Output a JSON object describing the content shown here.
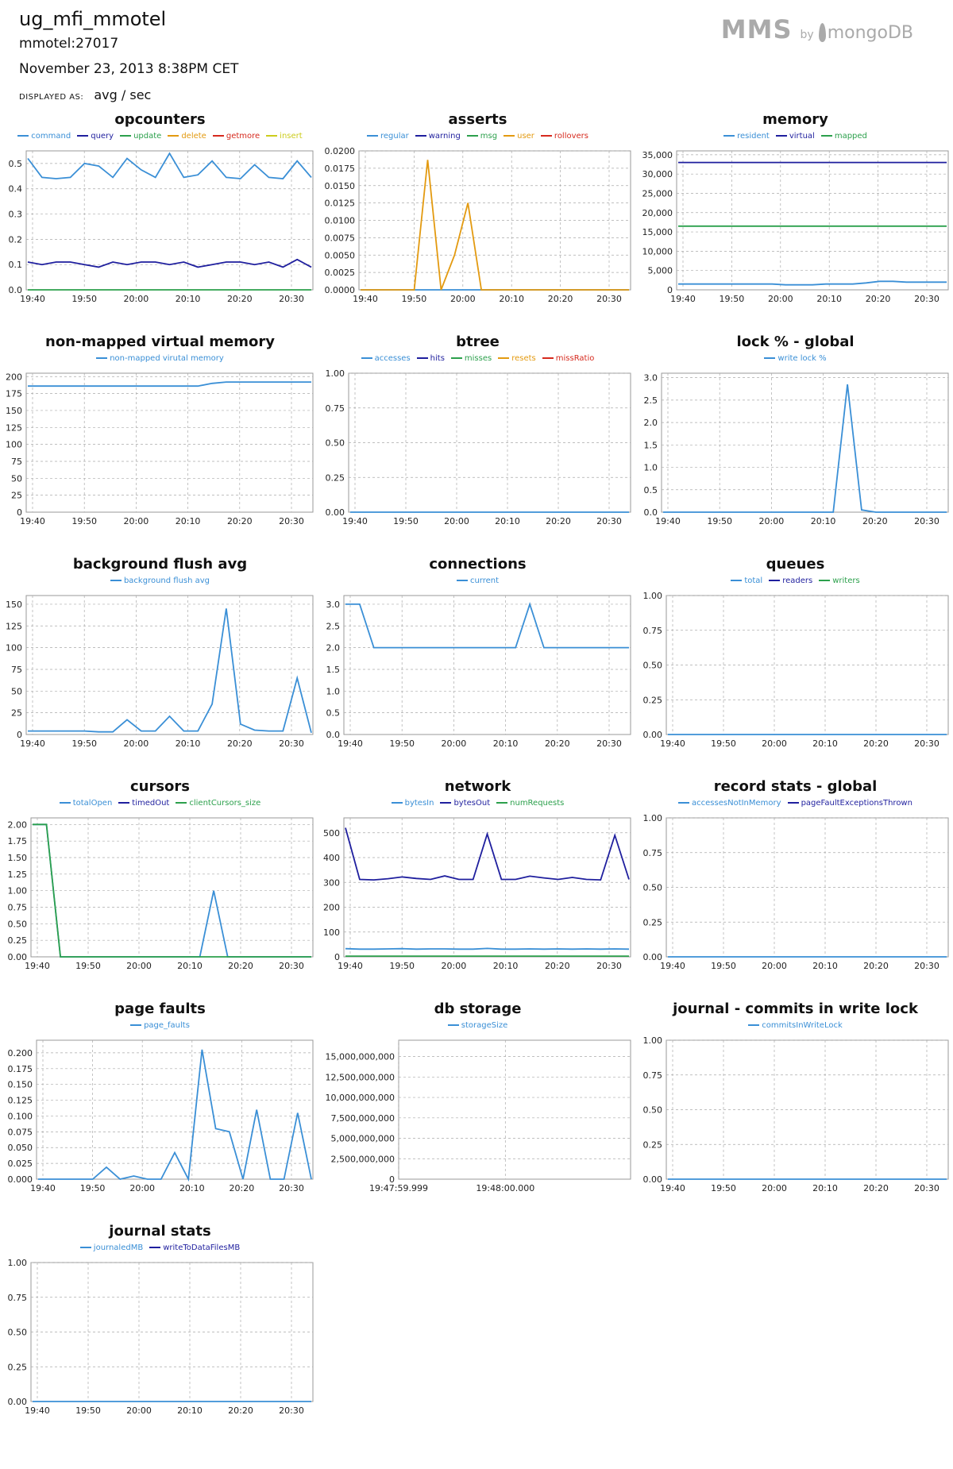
{
  "header": {
    "title": "ug_mfi_mmotel",
    "host": "mmotel:27017",
    "date": "November 23, 2013 8:38PM CET",
    "displayed_as_label": "DISPLAYED AS:",
    "displayed_as_value": "avg / sec",
    "logo_mms": "MMS",
    "logo_by": "by",
    "logo_mongodb": "mongoDB"
  },
  "colors": {
    "blue": "#3a8fd6",
    "navy": "#1f1f9e",
    "green": "#2ca04c",
    "orange": "#e39a10",
    "red": "#d62a1e",
    "yellow": "#cccc1c"
  },
  "chart_data": [
    {
      "type": "line",
      "title": "opcounters",
      "xticks": [
        "19:40",
        "19:50",
        "20:00",
        "20:10",
        "20:20",
        "20:30"
      ],
      "ylim": [
        0,
        0.55
      ],
      "yticks": [
        "0.0",
        "0.1",
        "0.2",
        "0.3",
        "0.4",
        "0.5"
      ],
      "series": [
        {
          "name": "command",
          "color": "#3a8fd6",
          "values": [
            0.52,
            0.445,
            0.44,
            0.445,
            0.5,
            0.49,
            0.445,
            0.52,
            0.475,
            0.445,
            0.54,
            0.445,
            0.455,
            0.51,
            0.445,
            0.44,
            0.495,
            0.445,
            0.44,
            0.51,
            0.445
          ]
        },
        {
          "name": "query",
          "color": "#1f1f9e",
          "values": [
            0.11,
            0.1,
            0.11,
            0.11,
            0.1,
            0.09,
            0.11,
            0.1,
            0.11,
            0.11,
            0.1,
            0.11,
            0.09,
            0.1,
            0.11,
            0.11,
            0.1,
            0.11,
            0.09,
            0.12,
            0.09
          ]
        },
        {
          "name": "update",
          "color": "#2ca04c",
          "values": [
            0,
            0,
            0,
            0,
            0,
            0,
            0,
            0,
            0,
            0,
            0,
            0,
            0,
            0,
            0,
            0,
            0,
            0,
            0,
            0,
            0
          ]
        },
        {
          "name": "delete",
          "color": "#e39a10",
          "values": []
        },
        {
          "name": "getmore",
          "color": "#d62a1e",
          "values": []
        },
        {
          "name": "insert",
          "color": "#cccc1c",
          "values": []
        }
      ]
    },
    {
      "type": "line",
      "title": "asserts",
      "xticks": [
        "19:40",
        "19:50",
        "20:00",
        "20:10",
        "20:20",
        "20:30"
      ],
      "ylim": [
        0,
        0.02
      ],
      "yticks": [
        "0.0000",
        "0.0025",
        "0.0050",
        "0.0075",
        "0.0100",
        "0.0125",
        "0.0150",
        "0.0175",
        "0.0200"
      ],
      "series": [
        {
          "name": "regular",
          "color": "#3a8fd6",
          "values": [
            0,
            0,
            0,
            0,
            0,
            0,
            0,
            0,
            0,
            0,
            0,
            0,
            0,
            0,
            0,
            0,
            0,
            0,
            0,
            0,
            0
          ]
        },
        {
          "name": "warning",
          "color": "#1f1f9e",
          "values": []
        },
        {
          "name": "msg",
          "color": "#2ca04c",
          "values": []
        },
        {
          "name": "user",
          "color": "#e39a10",
          "values": [
            0,
            0,
            0,
            0,
            0,
            0.0187,
            0,
            0.005,
            0.0125,
            0,
            0,
            0,
            0,
            0,
            0,
            0,
            0,
            0,
            0,
            0,
            0
          ]
        },
        {
          "name": "rollovers",
          "color": "#d62a1e",
          "values": []
        }
      ]
    },
    {
      "type": "line",
      "title": "memory",
      "xticks": [
        "19:40",
        "19:50",
        "20:00",
        "20:10",
        "20:20",
        "20:30"
      ],
      "ylim": [
        0,
        36000
      ],
      "yticks": [
        "0",
        "5,000",
        "10,000",
        "15,000",
        "20,000",
        "25,000",
        "30,000",
        "35,000"
      ],
      "series": [
        {
          "name": "resident",
          "color": "#3a8fd6",
          "values": [
            1500,
            1500,
            1500,
            1500,
            1500,
            1500,
            1500,
            1500,
            1300,
            1300,
            1300,
            1500,
            1500,
            1500,
            1800,
            2200,
            2200,
            2000,
            2000,
            2000,
            2000
          ]
        },
        {
          "name": "virtual",
          "color": "#1f1f9e",
          "values": [
            33000,
            33000,
            33000,
            33000,
            33000,
            33000,
            33000,
            33000,
            33000,
            33000,
            33000,
            33000,
            33000,
            33000,
            33000,
            33000,
            33000,
            33000,
            33000,
            33000,
            33000
          ]
        },
        {
          "name": "mapped",
          "color": "#2ca04c",
          "values": [
            16500,
            16500,
            16500,
            16500,
            16500,
            16500,
            16500,
            16500,
            16500,
            16500,
            16500,
            16500,
            16500,
            16500,
            16500,
            16500,
            16500,
            16500,
            16500,
            16500,
            16500
          ]
        }
      ]
    },
    {
      "type": "line",
      "title": "non-mapped virtual memory",
      "xticks": [
        "19:40",
        "19:50",
        "20:00",
        "20:10",
        "20:20",
        "20:30"
      ],
      "ylim": [
        0,
        205
      ],
      "yticks": [
        "0",
        "25",
        "50",
        "75",
        "100",
        "125",
        "150",
        "175",
        "200"
      ],
      "series": [
        {
          "name": "non-mapped virutal memory",
          "color": "#3a8fd6",
          "values": [
            186,
            186,
            186,
            186,
            186,
            186,
            186,
            186,
            186,
            186,
            186,
            186,
            186,
            190,
            192,
            192,
            192,
            192,
            192,
            192,
            192
          ]
        }
      ]
    },
    {
      "type": "line",
      "title": "btree",
      "xticks": [
        "19:40",
        "19:50",
        "20:00",
        "20:10",
        "20:20",
        "20:30"
      ],
      "ylim": [
        0,
        1
      ],
      "yticks": [
        "0.00",
        "0.25",
        "0.50",
        "0.75",
        "1.00"
      ],
      "series": [
        {
          "name": "accesses",
          "color": "#3a8fd6",
          "values": [
            0,
            0,
            0,
            0,
            0,
            0,
            0,
            0,
            0,
            0,
            0,
            0,
            0,
            0,
            0,
            0,
            0,
            0,
            0,
            0,
            0
          ]
        },
        {
          "name": "hits",
          "color": "#1f1f9e",
          "values": []
        },
        {
          "name": "misses",
          "color": "#2ca04c",
          "values": []
        },
        {
          "name": "resets",
          "color": "#e39a10",
          "values": []
        },
        {
          "name": "missRatio",
          "color": "#d62a1e",
          "values": []
        }
      ]
    },
    {
      "type": "line",
      "title": "lock % - global",
      "xticks": [
        "19:40",
        "19:50",
        "20:00",
        "20:10",
        "20:20",
        "20:30"
      ],
      "ylim": [
        0,
        3.1
      ],
      "yticks": [
        "0.0",
        "0.5",
        "1.0",
        "1.5",
        "2.0",
        "2.5",
        "3.0"
      ],
      "series": [
        {
          "name": "write lock %",
          "color": "#3a8fd6",
          "values": [
            0,
            0,
            0,
            0,
            0,
            0,
            0,
            0,
            0,
            0,
            0,
            0,
            0,
            2.85,
            0.05,
            0,
            0,
            0,
            0,
            0,
            0
          ]
        }
      ]
    },
    {
      "type": "line",
      "title": "background flush avg",
      "xticks": [
        "19:40",
        "19:50",
        "20:00",
        "20:10",
        "20:20",
        "20:30"
      ],
      "ylim": [
        0,
        160
      ],
      "yticks": [
        "0",
        "25",
        "50",
        "75",
        "100",
        "125",
        "150"
      ],
      "series": [
        {
          "name": "background flush avg",
          "color": "#3a8fd6",
          "values": [
            4,
            4,
            4,
            4,
            4,
            3,
            3,
            17,
            4,
            4,
            21,
            4,
            4,
            35,
            145,
            12,
            5,
            4,
            4,
            65,
            2
          ]
        }
      ]
    },
    {
      "type": "line",
      "title": "connections",
      "xticks": [
        "19:40",
        "19:50",
        "20:00",
        "20:10",
        "20:20",
        "20:30"
      ],
      "ylim": [
        0,
        3.2
      ],
      "yticks": [
        "0.0",
        "0.5",
        "1.0",
        "1.5",
        "2.0",
        "2.5",
        "3.0"
      ],
      "series": [
        {
          "name": "current",
          "color": "#3a8fd6",
          "values": [
            3,
            3,
            2,
            2,
            2,
            2,
            2,
            2,
            2,
            2,
            2,
            2,
            2,
            3,
            2,
            2,
            2,
            2,
            2,
            2,
            2
          ]
        }
      ]
    },
    {
      "type": "line",
      "title": "queues",
      "xticks": [
        "19:40",
        "19:50",
        "20:00",
        "20:10",
        "20:20",
        "20:30"
      ],
      "ylim": [
        0,
        1
      ],
      "yticks": [
        "0.00",
        "0.25",
        "0.50",
        "0.75",
        "1.00"
      ],
      "series": [
        {
          "name": "total",
          "color": "#3a8fd6",
          "values": [
            0,
            0,
            0,
            0,
            0,
            0,
            0,
            0,
            0,
            0,
            0,
            0,
            0,
            0,
            0,
            0,
            0,
            0,
            0,
            0,
            0
          ]
        },
        {
          "name": "readers",
          "color": "#1f1f9e",
          "values": []
        },
        {
          "name": "writers",
          "color": "#2ca04c",
          "values": []
        }
      ]
    },
    {
      "type": "line",
      "title": "cursors",
      "xticks": [
        "19:40",
        "19:50",
        "20:00",
        "20:10",
        "20:20",
        "20:30"
      ],
      "ylim": [
        0,
        2.1
      ],
      "yticks": [
        "0.00",
        "0.25",
        "0.50",
        "0.75",
        "1.00",
        "1.25",
        "1.50",
        "1.75",
        "2.00"
      ],
      "series": [
        {
          "name": "totalOpen",
          "color": "#3a8fd6",
          "values": [
            2,
            2,
            0,
            0,
            0,
            0,
            0,
            0,
            0,
            0,
            0,
            0,
            0,
            1,
            0,
            0,
            0,
            0,
            0,
            0,
            0
          ]
        },
        {
          "name": "timedOut",
          "color": "#1f1f9e",
          "values": []
        },
        {
          "name": "clientCursors_size",
          "color": "#2ca04c",
          "values": [
            2,
            2,
            0,
            0,
            0,
            0,
            0,
            0,
            0,
            0,
            0,
            0,
            0,
            0,
            0,
            0,
            0,
            0,
            0,
            0,
            0
          ]
        }
      ]
    },
    {
      "type": "line",
      "title": "network",
      "xticks": [
        "19:40",
        "19:50",
        "20:00",
        "20:10",
        "20:20",
        "20:30"
      ],
      "ylim": [
        0,
        560
      ],
      "yticks": [
        "0",
        "100",
        "200",
        "300",
        "400",
        "500"
      ],
      "series": [
        {
          "name": "bytesIn",
          "color": "#3a8fd6",
          "values": [
            33,
            31,
            31,
            32,
            33,
            31,
            32,
            32,
            31,
            31,
            34,
            31,
            31,
            32,
            31,
            32,
            31,
            32,
            31,
            32,
            31
          ]
        },
        {
          "name": "bytesOut",
          "color": "#1f1f9e",
          "values": [
            520,
            312,
            310,
            315,
            322,
            316,
            312,
            326,
            312,
            312,
            495,
            312,
            312,
            325,
            318,
            312,
            320,
            312,
            310,
            490,
            312
          ]
        },
        {
          "name": "numRequests",
          "color": "#2ca04c",
          "values": [
            3,
            3,
            3,
            3,
            3,
            3,
            3,
            3,
            3,
            3,
            3,
            3,
            3,
            3,
            3,
            3,
            3,
            3,
            3,
            3,
            3
          ]
        }
      ]
    },
    {
      "type": "line",
      "title": "record stats - global",
      "xticks": [
        "19:40",
        "19:50",
        "20:00",
        "20:10",
        "20:20",
        "20:30"
      ],
      "ylim": [
        0,
        1
      ],
      "yticks": [
        "0.00",
        "0.25",
        "0.50",
        "0.75",
        "1.00"
      ],
      "series": [
        {
          "name": "accessesNotInMemory",
          "color": "#3a8fd6",
          "values": [
            0,
            0,
            0,
            0,
            0,
            0,
            0,
            0,
            0,
            0,
            0,
            0,
            0,
            0,
            0,
            0,
            0,
            0,
            0,
            0,
            0
          ]
        },
        {
          "name": "pageFaultExceptionsThrown",
          "color": "#1f1f9e",
          "values": []
        }
      ]
    },
    {
      "type": "line",
      "title": "page faults",
      "xticks": [
        "19:40",
        "19:50",
        "20:00",
        "20:10",
        "20:20",
        "20:30"
      ],
      "ylim": [
        0,
        0.22
      ],
      "yticks": [
        "0.000",
        "0.025",
        "0.050",
        "0.075",
        "0.100",
        "0.125",
        "0.150",
        "0.175",
        "0.200"
      ],
      "series": [
        {
          "name": "page_faults",
          "color": "#3a8fd6",
          "values": [
            0,
            0,
            0,
            0,
            0,
            0.019,
            0,
            0.005,
            0,
            0,
            0.042,
            0,
            0.205,
            0.08,
            0.075,
            0,
            0.11,
            0,
            0,
            0.105,
            0
          ]
        }
      ]
    },
    {
      "type": "line",
      "title": "db storage",
      "xticks": [
        "19:47:59.999",
        "19:48:00.000"
      ],
      "ylim": [
        0,
        17000000000
      ],
      "yticks": [
        "0",
        "2,500,000,000",
        "5,000,000,000",
        "7,500,000,000",
        "10,000,000,000",
        "12,500,000,000",
        "15,000,000,000"
      ],
      "series": [
        {
          "name": "storageSize",
          "color": "#3a8fd6",
          "values": []
        }
      ]
    },
    {
      "type": "line",
      "title": "journal - commits in write lock",
      "xticks": [
        "19:40",
        "19:50",
        "20:00",
        "20:10",
        "20:20",
        "20:30"
      ],
      "ylim": [
        0,
        1
      ],
      "yticks": [
        "0.00",
        "0.25",
        "0.50",
        "0.75",
        "1.00"
      ],
      "series": [
        {
          "name": "commitsInWriteLock",
          "color": "#3a8fd6",
          "values": [
            0,
            0,
            0,
            0,
            0,
            0,
            0,
            0,
            0,
            0,
            0,
            0,
            0,
            0,
            0,
            0,
            0,
            0,
            0,
            0,
            0
          ]
        }
      ]
    },
    {
      "type": "line",
      "title": "journal stats",
      "xticks": [
        "19:40",
        "19:50",
        "20:00",
        "20:10",
        "20:20",
        "20:30"
      ],
      "ylim": [
        0,
        1
      ],
      "yticks": [
        "0.00",
        "0.25",
        "0.50",
        "0.75",
        "1.00"
      ],
      "series": [
        {
          "name": "journaledMB",
          "color": "#3a8fd6",
          "values": [
            0,
            0,
            0,
            0,
            0,
            0,
            0,
            0,
            0,
            0,
            0,
            0,
            0,
            0,
            0,
            0,
            0,
            0,
            0,
            0,
            0
          ]
        },
        {
          "name": "writeToDataFilesMB",
          "color": "#1f1f9e",
          "values": []
        }
      ]
    }
  ]
}
